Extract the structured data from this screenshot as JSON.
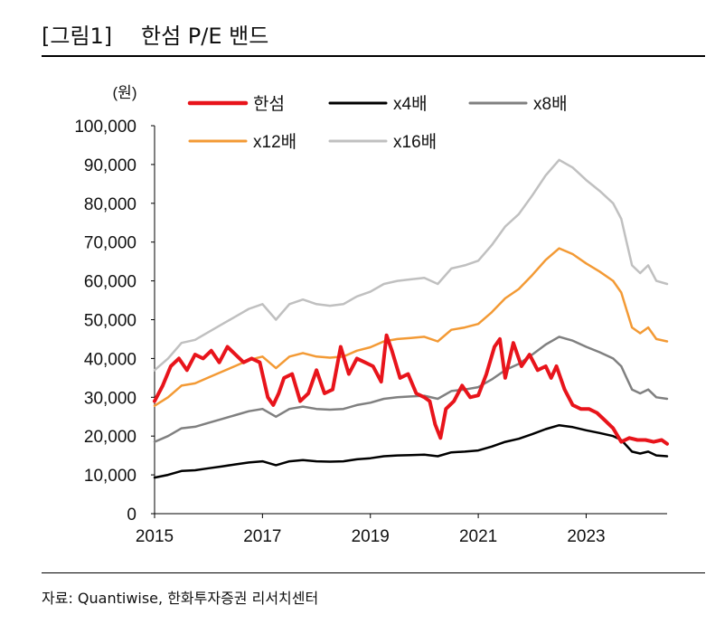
{
  "header": {
    "figure_label": "[그림1]",
    "title": "한섬 P/E 밴드"
  },
  "footer": {
    "source": "자료: Quantiwise, 한화투자증권 리서치센터"
  },
  "colors": {
    "hansum": "#e8141b",
    "x4": "#000000",
    "x8": "#808080",
    "x12": "#f39a35",
    "x16": "#c0c0c0",
    "axis": "#000000"
  },
  "chart_data": {
    "type": "line",
    "title": "한섬 P/E 밴드",
    "unit_label": "(원)",
    "xlabel": "",
    "ylabel": "(원)",
    "xlim": [
      2015.0,
      2024.5
    ],
    "ylim": [
      0,
      100000
    ],
    "x_ticks": [
      "2015",
      "2017",
      "2019",
      "2021",
      "2023"
    ],
    "x_tick_values": [
      2015,
      2017,
      2019,
      2021,
      2023
    ],
    "y_ticks": [
      "0",
      "10,000",
      "20,000",
      "30,000",
      "40,000",
      "50,000",
      "60,000",
      "70,000",
      "80,000",
      "90,000",
      "100,000"
    ],
    "y_tick_values": [
      0,
      10000,
      20000,
      30000,
      40000,
      50000,
      60000,
      70000,
      80000,
      90000,
      100000
    ],
    "grid": false,
    "legend_position": "top",
    "series": [
      {
        "name": "한섬",
        "key": "hansum",
        "color_key": "hansum",
        "x": [
          2015.0,
          2015.15,
          2015.3,
          2015.45,
          2015.6,
          2015.75,
          2015.9,
          2016.05,
          2016.2,
          2016.35,
          2016.5,
          2016.65,
          2016.8,
          2016.95,
          2017.1,
          2017.2,
          2017.3,
          2017.4,
          2017.55,
          2017.7,
          2017.85,
          2018.0,
          2018.15,
          2018.3,
          2018.45,
          2018.6,
          2018.75,
          2018.9,
          2019.05,
          2019.2,
          2019.3,
          2019.4,
          2019.55,
          2019.7,
          2019.85,
          2020.0,
          2020.1,
          2020.2,
          2020.3,
          2020.4,
          2020.55,
          2020.7,
          2020.85,
          2021.0,
          2021.15,
          2021.3,
          2021.4,
          2021.5,
          2021.65,
          2021.8,
          2021.95,
          2022.1,
          2022.25,
          2022.35,
          2022.45,
          2022.6,
          2022.75,
          2022.9,
          2023.05,
          2023.2,
          2023.35,
          2023.5,
          2023.65,
          2023.8,
          2023.95,
          2024.1,
          2024.25,
          2024.4,
          2024.5
        ],
        "values": [
          29000,
          33000,
          38000,
          40000,
          37000,
          41000,
          40000,
          42000,
          39000,
          43000,
          41000,
          39000,
          40000,
          39000,
          30000,
          28000,
          31000,
          35000,
          36000,
          29000,
          31000,
          37000,
          31000,
          32000,
          43000,
          36000,
          40000,
          39000,
          38000,
          34000,
          46000,
          42000,
          35000,
          36000,
          31000,
          30000,
          29000,
          23000,
          19500,
          27000,
          29000,
          33000,
          30000,
          30500,
          36000,
          43000,
          45000,
          35000,
          44000,
          38000,
          41000,
          37000,
          38000,
          35000,
          38000,
          32000,
          28000,
          27000,
          27000,
          26000,
          24000,
          22000,
          18500,
          19500,
          19000,
          19000,
          18500,
          19000,
          18000
        ]
      },
      {
        "name": "x4배",
        "key": "x4",
        "color_key": "x4",
        "x": [
          2015.0,
          2015.25,
          2015.5,
          2015.75,
          2016.0,
          2016.25,
          2016.5,
          2016.75,
          2017.0,
          2017.25,
          2017.5,
          2017.75,
          2018.0,
          2018.25,
          2018.5,
          2018.75,
          2019.0,
          2019.25,
          2019.5,
          2019.75,
          2020.0,
          2020.25,
          2020.5,
          2020.75,
          2021.0,
          2021.25,
          2021.5,
          2021.75,
          2022.0,
          2022.25,
          2022.5,
          2022.75,
          2023.0,
          2023.25,
          2023.5,
          2023.65,
          2023.75,
          2023.85,
          2024.0,
          2024.15,
          2024.3,
          2024.5
        ],
        "values": [
          9300,
          10000,
          11000,
          11200,
          11700,
          12200,
          12700,
          13200,
          13500,
          12500,
          13500,
          13800,
          13500,
          13400,
          13500,
          14000,
          14300,
          14800,
          15000,
          15100,
          15200,
          14800,
          15800,
          16000,
          16300,
          17300,
          18500,
          19300,
          20500,
          21800,
          22800,
          22300,
          21500,
          20800,
          20000,
          19000,
          17500,
          16000,
          15500,
          16000,
          15000,
          14800
        ]
      },
      {
        "name": "x8배",
        "key": "x8",
        "color_key": "x8",
        "x": [
          2015.0,
          2015.25,
          2015.5,
          2015.75,
          2016.0,
          2016.25,
          2016.5,
          2016.75,
          2017.0,
          2017.25,
          2017.5,
          2017.75,
          2018.0,
          2018.25,
          2018.5,
          2018.75,
          2019.0,
          2019.25,
          2019.5,
          2019.75,
          2020.0,
          2020.25,
          2020.5,
          2020.75,
          2021.0,
          2021.25,
          2021.5,
          2021.75,
          2022.0,
          2022.25,
          2022.5,
          2022.75,
          2023.0,
          2023.25,
          2023.5,
          2023.65,
          2023.75,
          2023.85,
          2024.0,
          2024.15,
          2024.3,
          2024.5
        ],
        "values": [
          18500,
          20000,
          22000,
          22400,
          23400,
          24400,
          25400,
          26400,
          27000,
          25000,
          27000,
          27600,
          27000,
          26800,
          27000,
          28000,
          28600,
          29600,
          30000,
          30200,
          30400,
          29600,
          31600,
          32000,
          32600,
          34600,
          37000,
          38600,
          41000,
          43600,
          45600,
          44600,
          43000,
          41600,
          40000,
          38000,
          35000,
          32000,
          31000,
          32000,
          30000,
          29600
        ]
      },
      {
        "name": "x12배",
        "key": "x12",
        "color_key": "x12",
        "x": [
          2015.0,
          2015.25,
          2015.5,
          2015.75,
          2016.0,
          2016.25,
          2016.5,
          2016.75,
          2017.0,
          2017.25,
          2017.5,
          2017.75,
          2018.0,
          2018.25,
          2018.5,
          2018.75,
          2019.0,
          2019.25,
          2019.5,
          2019.75,
          2020.0,
          2020.25,
          2020.5,
          2020.75,
          2021.0,
          2021.25,
          2021.5,
          2021.75,
          2022.0,
          2022.25,
          2022.5,
          2022.75,
          2023.0,
          2023.25,
          2023.5,
          2023.65,
          2023.75,
          2023.85,
          2024.0,
          2024.15,
          2024.3,
          2024.5
        ],
        "values": [
          27800,
          30000,
          33000,
          33600,
          35100,
          36600,
          38100,
          39600,
          40500,
          37500,
          40500,
          41400,
          40500,
          40200,
          40500,
          42000,
          42900,
          44400,
          45000,
          45300,
          45600,
          44400,
          47400,
          48000,
          48900,
          51900,
          55500,
          57900,
          61500,
          65400,
          68400,
          66900,
          64500,
          62400,
          60000,
          57000,
          52500,
          48000,
          46500,
          48000,
          45000,
          44400
        ]
      },
      {
        "name": "x16배",
        "key": "x16",
        "color_key": "x16",
        "x": [
          2015.0,
          2015.25,
          2015.5,
          2015.75,
          2016.0,
          2016.25,
          2016.5,
          2016.75,
          2017.0,
          2017.25,
          2017.5,
          2017.75,
          2018.0,
          2018.25,
          2018.5,
          2018.75,
          2019.0,
          2019.25,
          2019.5,
          2019.75,
          2020.0,
          2020.25,
          2020.5,
          2020.75,
          2021.0,
          2021.25,
          2021.5,
          2021.75,
          2022.0,
          2022.25,
          2022.5,
          2022.75,
          2023.0,
          2023.25,
          2023.5,
          2023.65,
          2023.75,
          2023.85,
          2024.0,
          2024.15,
          2024.3,
          2024.5
        ],
        "values": [
          37000,
          40000,
          44000,
          44800,
          46800,
          48800,
          50800,
          52800,
          54000,
          50000,
          54000,
          55200,
          54000,
          53600,
          54000,
          56000,
          57200,
          59200,
          60000,
          60400,
          60800,
          59200,
          63200,
          64000,
          65200,
          69200,
          74000,
          77200,
          82000,
          87200,
          91200,
          89200,
          86000,
          83200,
          80000,
          76000,
          70000,
          64000,
          62000,
          64000,
          60000,
          59200
        ]
      }
    ]
  }
}
